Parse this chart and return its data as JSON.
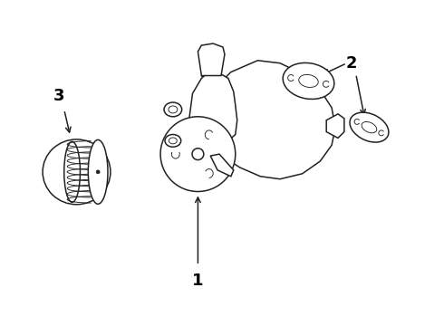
{
  "background_color": "#ffffff",
  "line_color": "#222222",
  "label_color": "#000000",
  "fig_width": 4.9,
  "fig_height": 3.6,
  "dpi": 100,
  "xlim": [
    0,
    4.9
  ],
  "ylim": [
    0,
    3.6
  ]
}
